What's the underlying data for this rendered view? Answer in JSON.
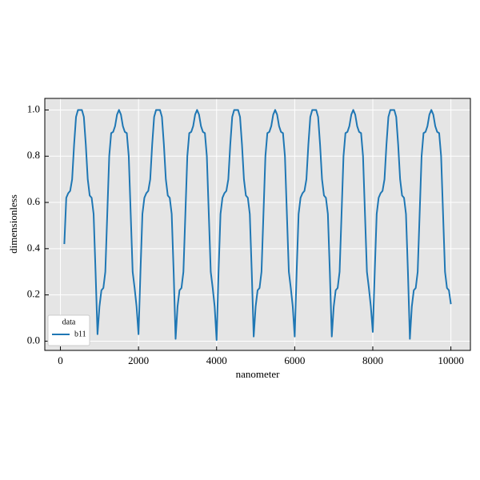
{
  "chart_data": {
    "type": "line",
    "xlabel": "nanometer",
    "ylabel": "dimensionless",
    "legend_title": "data",
    "legend_loc": "lower left",
    "grid": true,
    "xlim": [
      -400,
      10500
    ],
    "ylim": [
      -0.04,
      1.05
    ],
    "xticks": [
      0,
      2000,
      4000,
      6000,
      8000,
      10000
    ],
    "yticks": [
      {
        "value": 0,
        "label": "0.0"
      },
      0.2,
      0.4,
      0.6,
      0.8,
      {
        "value": 1,
        "label": "1.0"
      }
    ],
    "x": [
      100,
      150,
      200,
      250,
      300,
      350,
      400,
      450,
      500,
      550,
      600,
      650,
      700,
      750,
      800,
      850,
      900,
      950,
      1000,
      1050,
      1100,
      1150,
      1200,
      1250,
      1300,
      1350,
      1400,
      1450,
      1500,
      1550,
      1600,
      1650,
      1700,
      1750,
      1800,
      1850,
      1900,
      1950,
      2000,
      2050,
      2100,
      2150,
      2200,
      2250,
      2300,
      2350,
      2400,
      2450,
      2500,
      2550,
      2600,
      2650,
      2700,
      2750,
      2800,
      2850,
      2900,
      2950,
      3000,
      3050,
      3100,
      3150,
      3200,
      3250,
      3300,
      3350,
      3400,
      3450,
      3500,
      3550,
      3600,
      3650,
      3700,
      3750,
      3800,
      3850,
      3900,
      3950,
      4000,
      4050,
      4100,
      4150,
      4200,
      4250,
      4300,
      4350,
      4400,
      4450,
      4500,
      4550,
      4600,
      4650,
      4700,
      4750,
      4800,
      4850,
      4900,
      4950,
      5000,
      5050,
      5100,
      5150,
      5200,
      5250,
      5300,
      5350,
      5400,
      5450,
      5500,
      5550,
      5600,
      5650,
      5700,
      5750,
      5800,
      5850,
      5900,
      5950,
      6000,
      6050,
      6100,
      6150,
      6200,
      6250,
      6300,
      6350,
      6400,
      6450,
      6500,
      6550,
      6600,
      6650,
      6700,
      6750,
      6800,
      6850,
      6900,
      6950,
      7000,
      7050,
      7100,
      7150,
      7200,
      7250,
      7300,
      7350,
      7400,
      7450,
      7500,
      7550,
      7600,
      7650,
      7700,
      7750,
      7800,
      7850,
      7900,
      7950,
      8000,
      8050,
      8100,
      8150,
      8200,
      8250,
      8300,
      8350,
      8400,
      8450,
      8500,
      8550,
      8600,
      8650,
      8700,
      8750,
      8800,
      8850,
      8900,
      8950,
      9000,
      9050,
      9100,
      9150,
      9200,
      9250,
      9300,
      9350,
      9400,
      9450,
      9500,
      9550,
      9600,
      9650,
      9700,
      9750,
      9800,
      9850,
      9900,
      9950,
      10000
    ],
    "series": [
      {
        "name": "b11",
        "color": "#1f77b4",
        "values": [
          0.42,
          0.62,
          0.64,
          0.65,
          0.7,
          0.85,
          0.97,
          1.0,
          1.0,
          1.0,
          0.97,
          0.85,
          0.7,
          0.63,
          0.62,
          0.55,
          0.3,
          0.03,
          0.15,
          0.22,
          0.23,
          0.3,
          0.55,
          0.8,
          0.9,
          0.905,
          0.93,
          0.98,
          1.0,
          0.98,
          0.93,
          0.905,
          0.9,
          0.8,
          0.55,
          0.3,
          0.23,
          0.15,
          0.03,
          0.3,
          0.55,
          0.62,
          0.64,
          0.65,
          0.7,
          0.85,
          0.97,
          1.0,
          1.0,
          1.0,
          0.97,
          0.85,
          0.7,
          0.63,
          0.62,
          0.55,
          0.3,
          0.01,
          0.15,
          0.22,
          0.23,
          0.3,
          0.55,
          0.8,
          0.9,
          0.905,
          0.93,
          0.98,
          1.0,
          0.98,
          0.93,
          0.905,
          0.9,
          0.8,
          0.55,
          0.3,
          0.23,
          0.15,
          0.005,
          0.3,
          0.55,
          0.62,
          0.64,
          0.65,
          0.7,
          0.85,
          0.97,
          1.0,
          1.0,
          1.0,
          0.97,
          0.85,
          0.7,
          0.63,
          0.62,
          0.55,
          0.3,
          0.02,
          0.15,
          0.22,
          0.23,
          0.3,
          0.55,
          0.8,
          0.9,
          0.905,
          0.93,
          0.98,
          1.0,
          0.98,
          0.93,
          0.905,
          0.9,
          0.8,
          0.55,
          0.3,
          0.23,
          0.15,
          0.02,
          0.3,
          0.55,
          0.62,
          0.64,
          0.65,
          0.7,
          0.85,
          0.97,
          1.0,
          1.0,
          1.0,
          0.97,
          0.85,
          0.7,
          0.63,
          0.62,
          0.55,
          0.3,
          0.02,
          0.15,
          0.22,
          0.23,
          0.3,
          0.55,
          0.8,
          0.9,
          0.905,
          0.93,
          0.98,
          1.0,
          0.98,
          0.93,
          0.905,
          0.9,
          0.8,
          0.55,
          0.3,
          0.23,
          0.15,
          0.04,
          0.3,
          0.55,
          0.62,
          0.64,
          0.65,
          0.7,
          0.85,
          0.97,
          1.0,
          1.0,
          1.0,
          0.97,
          0.85,
          0.7,
          0.63,
          0.62,
          0.55,
          0.3,
          0.01,
          0.15,
          0.22,
          0.23,
          0.3,
          0.55,
          0.8,
          0.9,
          0.905,
          0.93,
          0.98,
          1.0,
          0.98,
          0.93,
          0.905,
          0.9,
          0.8,
          0.55,
          0.3,
          0.23,
          0.22,
          0.16
        ]
      }
    ]
  }
}
